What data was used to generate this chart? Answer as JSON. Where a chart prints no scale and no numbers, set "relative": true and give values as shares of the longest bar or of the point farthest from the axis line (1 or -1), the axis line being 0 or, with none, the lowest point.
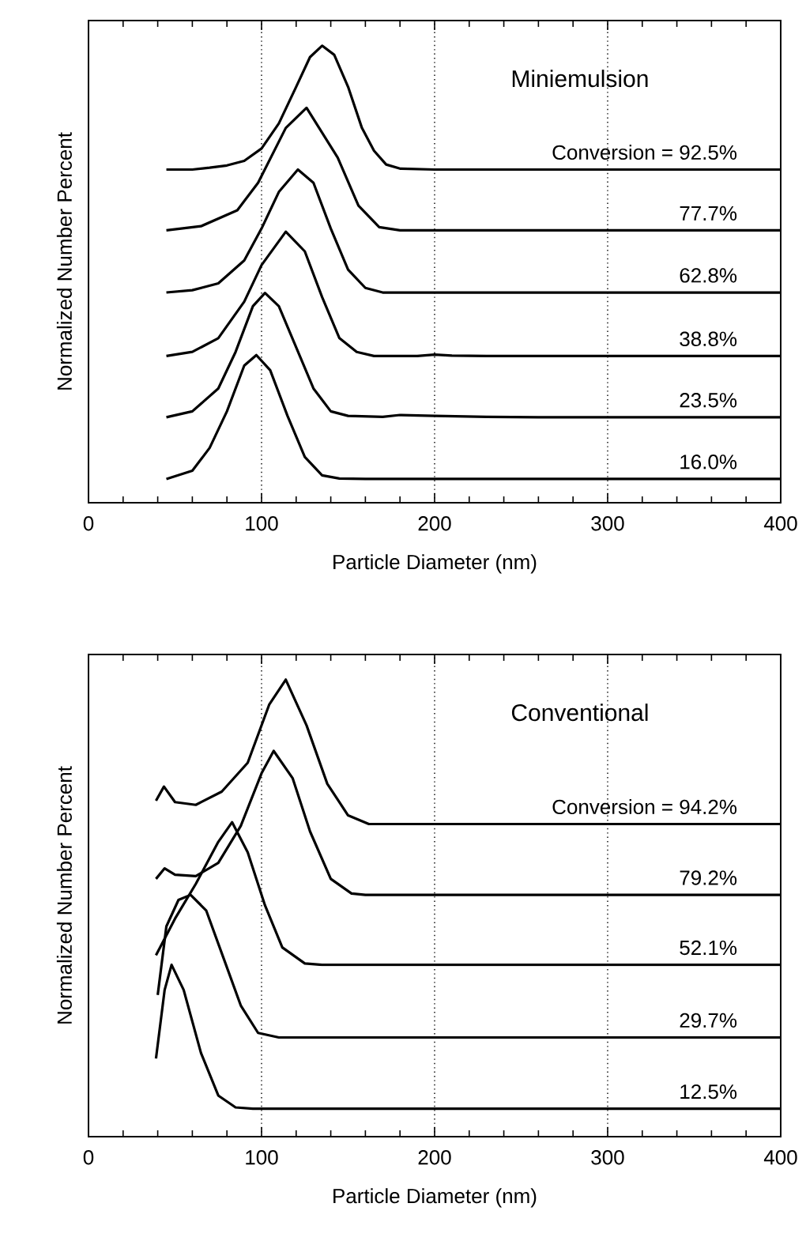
{
  "chart_data": [
    {
      "type": "line",
      "xlabel": "Particle Diameter (nm)",
      "ylabel": "Normalized Number Percent",
      "xlim": [
        0,
        400
      ],
      "xticks": [
        0,
        100,
        200,
        300,
        400
      ],
      "relative": true,
      "annotations": [
        "Miniemulsion"
      ],
      "ref_lines": [
        {
          "axis": "x",
          "value": 100,
          "line_style": "dotted"
        },
        {
          "axis": "x",
          "value": 200,
          "line_style": "dotted"
        },
        {
          "axis": "x",
          "value": 300,
          "line_style": "dotted"
        }
      ],
      "series": [
        {
          "name": "Conversion = 92.5%",
          "color": "#000000",
          "x": [
            45,
            60,
            70,
            80,
            90,
            100,
            110,
            120,
            128,
            135,
            142,
            150,
            158,
            165,
            172,
            180,
            200,
            400
          ],
          "values": [
            0.729,
            0.729,
            0.733,
            0.738,
            0.748,
            0.775,
            0.83,
            0.91,
            0.975,
            1.0,
            0.98,
            0.91,
            0.82,
            0.77,
            0.74,
            0.731,
            0.729,
            0.729
          ]
        },
        {
          "name": "77.7%",
          "color": "#000000",
          "x": [
            45,
            65,
            86,
            98,
            114,
            126,
            144,
            156,
            168,
            180,
            400
          ],
          "values": [
            0.596,
            0.605,
            0.64,
            0.7,
            0.82,
            0.864,
            0.755,
            0.65,
            0.603,
            0.596,
            0.596
          ]
        },
        {
          "name": "62.8%",
          "color": "#000000",
          "x": [
            45,
            60,
            75,
            90,
            100,
            110,
            121,
            130,
            140,
            150,
            160,
            170,
            400
          ],
          "values": [
            0.46,
            0.465,
            0.48,
            0.53,
            0.6,
            0.68,
            0.729,
            0.7,
            0.6,
            0.51,
            0.47,
            0.46,
            0.46
          ]
        },
        {
          "name": "38.8%",
          "color": "#000000",
          "x": [
            45,
            60,
            75,
            90,
            100,
            114,
            125,
            135,
            145,
            155,
            165,
            190,
            200,
            210,
            230,
            400
          ],
          "values": [
            0.321,
            0.33,
            0.36,
            0.44,
            0.52,
            0.593,
            0.55,
            0.45,
            0.36,
            0.33,
            0.321,
            0.321,
            0.324,
            0.322,
            0.321,
            0.321
          ]
        },
        {
          "name": "23.5%",
          "color": "#000000",
          "x": [
            45,
            60,
            75,
            85,
            95,
            102,
            110,
            120,
            130,
            140,
            150,
            170,
            180,
            200,
            230,
            260,
            400
          ],
          "values": [
            0.187,
            0.2,
            0.25,
            0.33,
            0.43,
            0.459,
            0.43,
            0.34,
            0.25,
            0.2,
            0.19,
            0.188,
            0.192,
            0.19,
            0.188,
            0.187,
            0.187
          ]
        },
        {
          "name": "16.0%",
          "color": "#000000",
          "x": [
            45,
            60,
            70,
            80,
            90,
            97,
            105,
            115,
            125,
            135,
            145,
            160,
            400
          ],
          "values": [
            0.052,
            0.07,
            0.12,
            0.2,
            0.3,
            0.323,
            0.29,
            0.19,
            0.1,
            0.06,
            0.053,
            0.052,
            0.052
          ]
        }
      ]
    },
    {
      "type": "line",
      "xlabel": "Particle Diameter (nm)",
      "ylabel": "Normalized Number Percent",
      "xlim": [
        0,
        400
      ],
      "xticks": [
        0,
        100,
        200,
        300,
        400
      ],
      "relative": true,
      "annotations": [
        "Conventional"
      ],
      "ref_lines": [
        {
          "axis": "x",
          "value": 100,
          "line_style": "dotted"
        },
        {
          "axis": "x",
          "value": 200,
          "line_style": "dotted"
        },
        {
          "axis": "x",
          "value": 300,
          "line_style": "dotted"
        }
      ],
      "series": [
        {
          "name": "Conversion = 94.2%",
          "color": "#000000",
          "x": [
            39,
            43.6,
            50,
            62,
            77,
            92,
            104.5,
            114,
            126,
            138,
            150,
            162,
            400
          ],
          "values": [
            0.735,
            0.766,
            0.732,
            0.726,
            0.755,
            0.818,
            0.946,
            1.0,
            0.9,
            0.772,
            0.703,
            0.684,
            0.684
          ]
        },
        {
          "name": "79.2%",
          "color": "#000000",
          "x": [
            39,
            44,
            50,
            62,
            75,
            88,
            100,
            107,
            118,
            128,
            140,
            152,
            160,
            400
          ],
          "values": [
            0.564,
            0.587,
            0.573,
            0.57,
            0.599,
            0.68,
            0.795,
            0.844,
            0.784,
            0.668,
            0.564,
            0.532,
            0.529,
            0.529
          ]
        },
        {
          "name": "52.1%",
          "color": "#000000",
          "x": [
            39,
            50,
            62,
            75,
            83,
            92,
            102,
            112,
            125,
            135,
            400
          ],
          "values": [
            0.397,
            0.477,
            0.553,
            0.645,
            0.688,
            0.622,
            0.506,
            0.414,
            0.379,
            0.376,
            0.376
          ]
        },
        {
          "name": "29.7%",
          "color": "#000000",
          "x": [
            40,
            45,
            52,
            59,
            68,
            78,
            88,
            98,
            110,
            400
          ],
          "values": [
            0.31,
            0.46,
            0.518,
            0.529,
            0.495,
            0.391,
            0.287,
            0.227,
            0.217,
            0.217
          ]
        },
        {
          "name": "12.5%",
          "color": "#000000",
          "x": [
            39,
            44,
            48,
            55,
            65,
            75,
            85,
            95,
            400
          ],
          "values": [
            0.171,
            0.321,
            0.376,
            0.321,
            0.183,
            0.09,
            0.064,
            0.061,
            0.061
          ]
        }
      ]
    }
  ]
}
